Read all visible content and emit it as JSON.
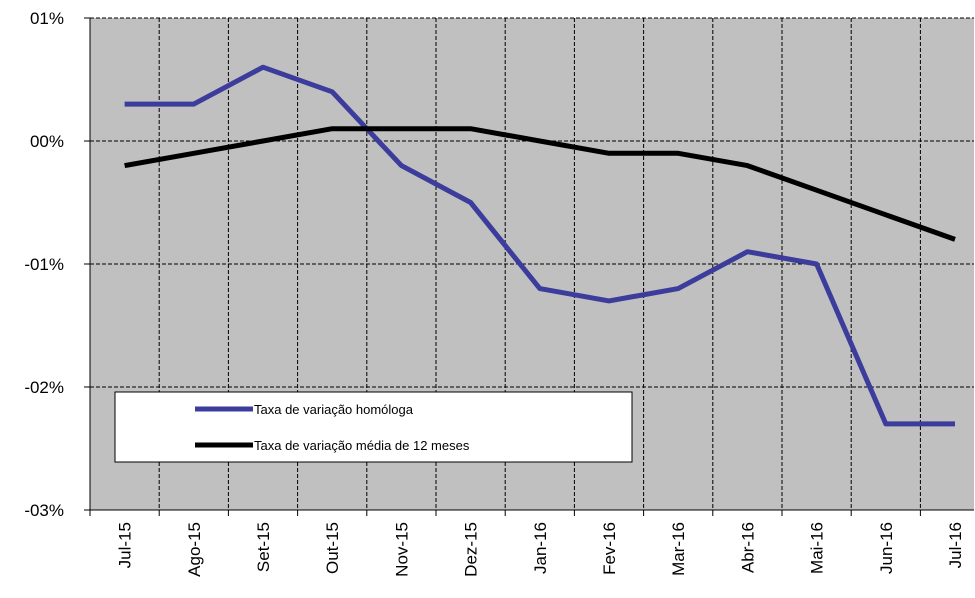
{
  "chart_data": {
    "type": "line",
    "categories": [
      "Jul-15",
      "Ago-15",
      "Set-15",
      "Out-15",
      "Nov-15",
      "Dez-15",
      "Jan-16",
      "Fev-16",
      "Mar-16",
      "Abr-16",
      "Mai-16",
      "Jun-16",
      "Jul-16"
    ],
    "series": [
      {
        "name": "Taxa de variação homóloga",
        "color": "#3c3c9c",
        "values": [
          0.3,
          0.3,
          0.6,
          0.4,
          -0.2,
          -0.5,
          -1.2,
          -1.3,
          -1.2,
          -0.9,
          -1.0,
          -2.3,
          -2.3
        ]
      },
      {
        "name": "Taxa de variação média de 12 meses",
        "color": "#000000",
        "values": [
          -0.2,
          -0.1,
          0.0,
          0.1,
          0.1,
          0.1,
          0.0,
          -0.1,
          -0.1,
          -0.2,
          -0.4,
          -0.6,
          -0.8
        ]
      }
    ],
    "ylim": [
      -3,
      1
    ],
    "yticks": [
      {
        "value": 1,
        "label": "01%"
      },
      {
        "value": 0,
        "label": "00%"
      },
      {
        "value": -1,
        "label": "-01%"
      },
      {
        "value": -2,
        "label": "-02%"
      },
      {
        "value": -3,
        "label": "-03%"
      }
    ],
    "grid": true,
    "legend": "lower-left"
  }
}
